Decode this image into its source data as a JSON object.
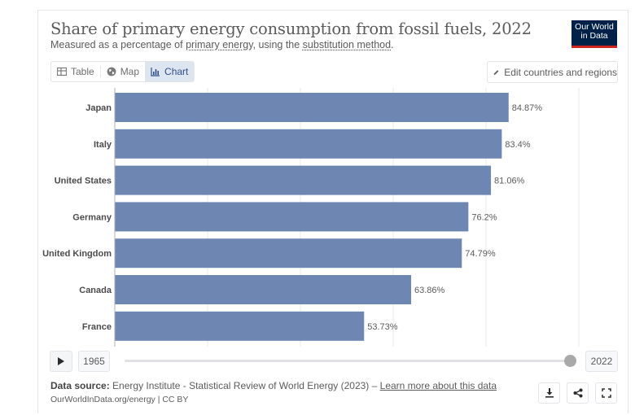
{
  "header": {
    "title": "Share of primary energy consumption from fossil fuels, 2022",
    "subtitle_prefix": "Measured as a percentage of ",
    "subtitle_link1": "primary energy",
    "subtitle_middle": ", using the ",
    "subtitle_link2": "substitution method",
    "subtitle_suffix": "."
  },
  "logo": {
    "line1": "Our World",
    "line2": "in Data",
    "bg_color": "#002147",
    "accent_color": "#ce261e"
  },
  "tabs": [
    {
      "label": "Table",
      "icon": "table-icon",
      "active": false
    },
    {
      "label": "Map",
      "icon": "globe-icon",
      "active": false
    },
    {
      "label": "Chart",
      "icon": "chart-icon",
      "active": true
    }
  ],
  "edit_button": {
    "label": "Edit countries and regions",
    "icon": "pencil-icon"
  },
  "chart_data": {
    "type": "bar",
    "orientation": "horizontal",
    "categories": [
      "Japan",
      "Italy",
      "United States",
      "Germany",
      "United Kingdom",
      "Canada",
      "France"
    ],
    "values": [
      84.87,
      83.4,
      81.06,
      76.2,
      74.79,
      63.86,
      53.73
    ],
    "value_labels": [
      "84.87%",
      "83.4%",
      "81.06%",
      "76.2%",
      "74.79%",
      "63.86%",
      "53.73%"
    ],
    "xlim": [
      0,
      100
    ],
    "grid": true,
    "bar_color": "#6d87b2"
  },
  "timeline": {
    "play_icon": "play-icon",
    "start_year": "1965",
    "end_year": "2022",
    "position": 1.0
  },
  "footer": {
    "source_label": "Data source:",
    "source_text": "Energy Institute - Statistical Review of World Energy (2023) – ",
    "source_link": "Learn more about this data",
    "license": "OurWorldInData.org/energy | CC BY"
  },
  "actions": [
    {
      "icon": "download-icon"
    },
    {
      "icon": "share-icon"
    },
    {
      "icon": "fullscreen-icon"
    }
  ]
}
